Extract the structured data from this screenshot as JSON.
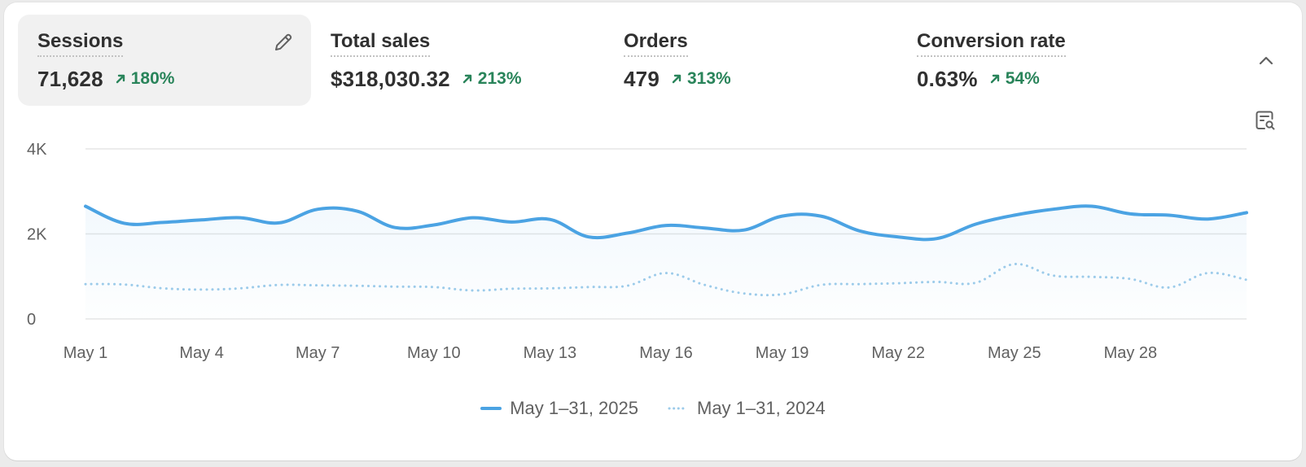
{
  "metrics": [
    {
      "label": "Sessions",
      "value": "71,628",
      "change": "180%",
      "active": true
    },
    {
      "label": "Total sales",
      "value": "$318,030.32",
      "change": "213%",
      "active": false
    },
    {
      "label": "Orders",
      "value": "479",
      "change": "313%",
      "active": false
    },
    {
      "label": "Conversion rate",
      "value": "0.63%",
      "change": "54%",
      "active": false
    }
  ],
  "icons": {
    "edit": "pencil-icon",
    "collapse": "chevron-up-icon",
    "explore": "report-search-icon",
    "trend": "arrow-up-right-icon"
  },
  "colors": {
    "current_series": "#4ba3e3",
    "previous_series": "#9ccbea",
    "positive_change": "#29845a"
  },
  "chart_data": {
    "type": "line",
    "ylim": [
      0,
      4000
    ],
    "y_ticks": [
      "0",
      "2K",
      "4K"
    ],
    "y_tick_values": [
      0,
      2000,
      4000
    ],
    "x_tick_labels": [
      "May 1",
      "May 4",
      "May 7",
      "May 10",
      "May 13",
      "May 16",
      "May 19",
      "May 22",
      "May 25",
      "May 28"
    ],
    "x_tick_days": [
      1,
      4,
      7,
      10,
      13,
      16,
      19,
      22,
      25,
      28
    ],
    "days": [
      1,
      2,
      3,
      4,
      5,
      6,
      7,
      8,
      9,
      10,
      11,
      12,
      13,
      14,
      15,
      16,
      17,
      18,
      19,
      20,
      21,
      22,
      23,
      24,
      25,
      26,
      27,
      28,
      29,
      30,
      31
    ],
    "grid": true,
    "legend_position": "bottom-center",
    "series": [
      {
        "name": "May 1–31, 2025",
        "style": "solid",
        "values": [
          2650,
          2250,
          2270,
          2330,
          2380,
          2260,
          2580,
          2540,
          2150,
          2210,
          2380,
          2280,
          2340,
          1930,
          2020,
          2200,
          2140,
          2090,
          2420,
          2420,
          2070,
          1930,
          1890,
          2230,
          2440,
          2580,
          2650,
          2470,
          2440,
          2350,
          2500
        ]
      },
      {
        "name": "May 1–31, 2024",
        "style": "dotted",
        "values": [
          820,
          810,
          720,
          690,
          720,
          800,
          790,
          780,
          760,
          750,
          670,
          710,
          720,
          750,
          780,
          1080,
          800,
          600,
          580,
          800,
          820,
          840,
          870,
          850,
          1290,
          1020,
          990,
          940,
          740,
          1080,
          920
        ]
      }
    ]
  }
}
